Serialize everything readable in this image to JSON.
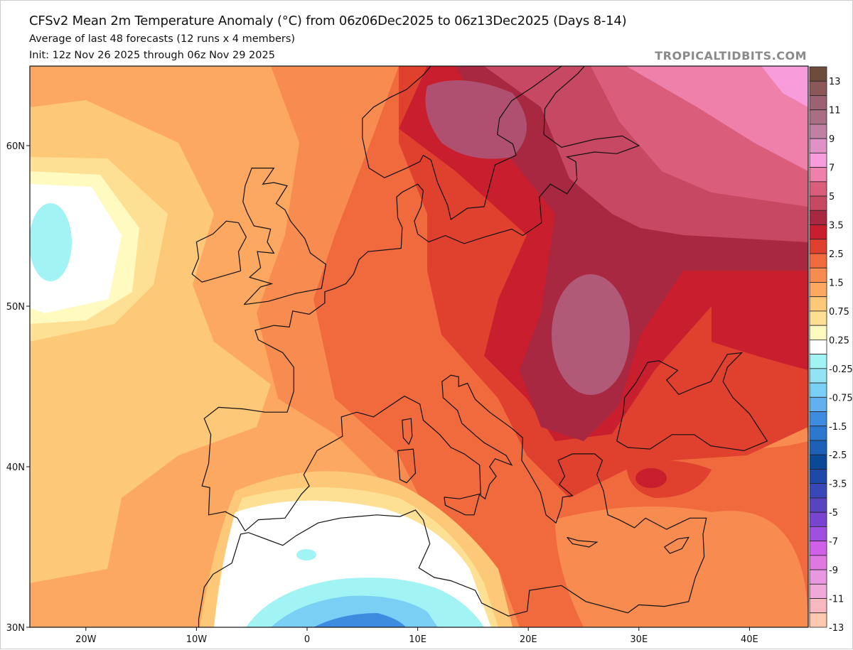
{
  "header": {
    "title": "CFSv2 Mean 2m Temperature Anomaly (°C) from 06z06Dec2025 to 06z13Dec2025 (Days 8-14)",
    "subtitle": "Average of last 48 forecasts (12 runs x 4 members)",
    "init": "Init: 12z Nov 26 2025 through 06z Nov 29 2025",
    "watermark": "TROPICALTIDBITS.COM"
  },
  "axes": {
    "lat_labels": [
      {
        "lat": 60,
        "label": "60N"
      },
      {
        "lat": 50,
        "label": "50N"
      },
      {
        "lat": 40,
        "label": "40N"
      },
      {
        "lat": 30,
        "label": "30N"
      }
    ],
    "lon_labels": [
      {
        "lon": -20,
        "label": "20W"
      },
      {
        "lon": -10,
        "label": "10W"
      },
      {
        "lon": 0,
        "label": "0"
      },
      {
        "lon": 10,
        "label": "10E"
      },
      {
        "lon": 20,
        "label": "20E"
      },
      {
        "lon": 30,
        "label": "30E"
      },
      {
        "lon": 40,
        "label": "40E"
      }
    ],
    "lon_range": [
      -25,
      45
    ],
    "lat_range": [
      30,
      65
    ]
  },
  "colorbar": {
    "labels": [
      "13",
      "11",
      "9",
      "7",
      "5",
      "3.5",
      "2.5",
      "1.5",
      "0.75",
      "0.25",
      "-0.25",
      "-0.75",
      "-1.5",
      "-2.5",
      "-3.5",
      "-5",
      "-7",
      "-9",
      "-11",
      "-13"
    ],
    "colors": [
      "#6e4c3c",
      "#8a5858",
      "#9a6272",
      "#a86e84",
      "#c080a4",
      "#e092c6",
      "#f89cdc",
      "#ee80aa",
      "#da5e7c",
      "#c64862",
      "#a82842",
      "#c81e2e",
      "#e0402e",
      "#f06a3e",
      "#f88c50",
      "#fca860",
      "#fdc878",
      "#fee094",
      "#fefac0",
      "#ffffff",
      "#a2f4f4",
      "#92e4f4",
      "#7acff4",
      "#62b0f0",
      "#3e8ce0",
      "#2c78d0",
      "#1c60b8",
      "#0c4898",
      "#2048a8",
      "#3848b8",
      "#5844c0",
      "#7844d0",
      "#a050e0",
      "#d060e8",
      "#e078e0",
      "#e898e0",
      "#f0a8d8",
      "#f8b8c0",
      "#fcc8b0"
    ]
  }
}
